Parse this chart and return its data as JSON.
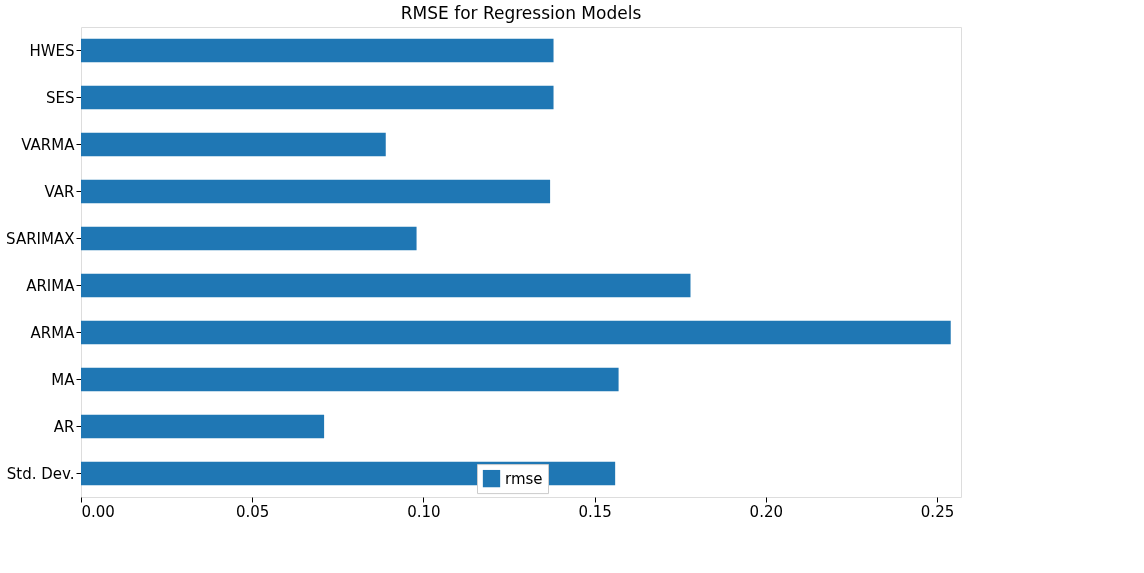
{
  "chart_data": {
    "type": "bar",
    "orientation": "horizontal",
    "title": "RMSE for Regression Models",
    "categories": [
      "HWES",
      "SES",
      "VARMA",
      "VAR",
      "SARIMAX",
      "ARIMA",
      "ARMA",
      "MA",
      "AR",
      "Std. Dev."
    ],
    "series": [
      {
        "name": "rmse",
        "color": "#1f77b4",
        "values": [
          0.138,
          0.138,
          0.089,
          0.137,
          0.098,
          0.178,
          0.254,
          0.157,
          0.071,
          0.156
        ]
      }
    ],
    "xlim": [
      0,
      0.257
    ],
    "xticks": [
      {
        "value": 0,
        "label": "0.00"
      },
      0.05,
      {
        "value": 0.1,
        "label": "0.10"
      },
      0.15,
      {
        "value": 0.2,
        "label": "0.20"
      },
      0.25
    ],
    "grid": false,
    "legend": "bottom"
  }
}
